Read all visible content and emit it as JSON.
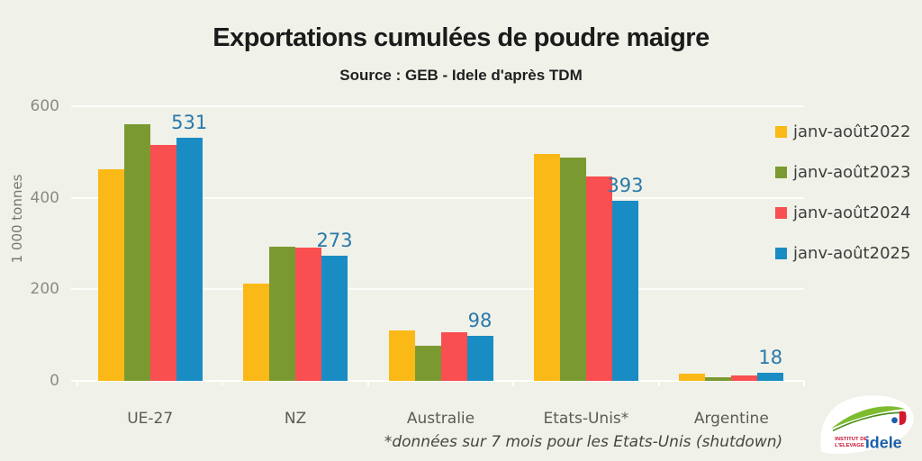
{
  "title": "Exportations cumulées de poudre maigre",
  "subtitle": "Source : GEB - Idele d'après TDM",
  "footnote": "*données sur 7 mois pour les Etats-Unis (shutdown)",
  "colors": {
    "background": "#F0F1E8",
    "gridline": "#FFFFFF",
    "data_label": "#2879AB",
    "series_2022": "#FBB917",
    "series_2023": "#7A9A31",
    "series_2024": "#F94F50",
    "series_2025": "#1A8CC4"
  },
  "chart_data": {
    "type": "bar",
    "title": "Exportations cumulées de poudre maigre",
    "subtitle": "Source : GEB - Idele d'après TDM",
    "xlabel": "",
    "ylabel": "1 000 tonnes",
    "ylim": [
      0,
      600
    ],
    "yticks": [
      600,
      400,
      200,
      0
    ],
    "grid": true,
    "legend_position": "right",
    "categories": [
      "UE-27",
      "NZ",
      "Australie",
      "Etats-Unis*",
      "Argentine"
    ],
    "series": [
      {
        "name": "janv-août2022",
        "color": "#FBB917",
        "values": [
          462,
          212,
          110,
          495,
          16
        ]
      },
      {
        "name": "janv-août2023",
        "color": "#7A9A31",
        "values": [
          560,
          294,
          77,
          488,
          8
        ]
      },
      {
        "name": "janv-août2024",
        "color": "#F94F50",
        "values": [
          515,
          291,
          106,
          446,
          12
        ]
      },
      {
        "name": "janv-août2025",
        "color": "#1A8CC4",
        "values": [
          531,
          273,
          98,
          393,
          18
        ]
      }
    ],
    "data_labels": {
      "series": "janv-août2025",
      "values": [
        531,
        273,
        98,
        393,
        18
      ]
    }
  },
  "logo": {
    "org_line1": "INSTITUT DE",
    "org_line2": "L'ELEVAGE",
    "brand": "idele"
  }
}
